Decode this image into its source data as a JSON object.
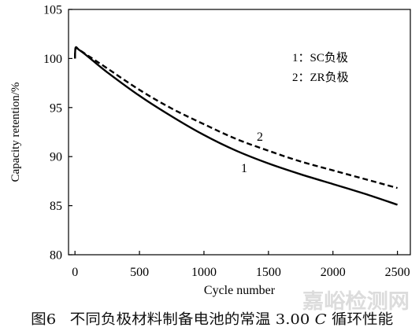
{
  "figure": {
    "caption": {
      "label": "图6",
      "text_before": "不同负极材料制备电池的常温 3.00 ",
      "italic": "C",
      "text_after": " 循环性能"
    },
    "watermark": "嘉峪检测网"
  },
  "chart_data": {
    "type": "line",
    "xlabel": "Cycle number",
    "ylabel": "Capacity retention/%",
    "xlim": [
      -50,
      2600
    ],
    "ylim": [
      80,
      105
    ],
    "xticks": [
      0,
      500,
      1000,
      1500,
      2000,
      2500
    ],
    "yticks": [
      80,
      85,
      90,
      95,
      100,
      105
    ],
    "grid": false,
    "legend": {
      "position": "top-right"
    },
    "x": [
      0,
      5,
      30,
      100,
      250,
      500,
      750,
      1000,
      1250,
      1500,
      1750,
      2000,
      2250,
      2500
    ],
    "series": [
      {
        "name": "1：SC负极",
        "label": "1",
        "line_style": "solid",
        "color": "#000000",
        "values": [
          100.0,
          101.1,
          100.9,
          100.2,
          98.6,
          96.2,
          94.1,
          92.2,
          90.6,
          89.3,
          88.2,
          87.2,
          86.2,
          85.1
        ]
      },
      {
        "name": "2：ZR负极",
        "label": "2",
        "line_style": "dashed",
        "color": "#000000",
        "values": [
          100.0,
          101.1,
          100.9,
          100.3,
          99.0,
          96.8,
          94.9,
          93.3,
          91.8,
          90.6,
          89.5,
          88.6,
          87.7,
          86.8
        ]
      }
    ]
  }
}
